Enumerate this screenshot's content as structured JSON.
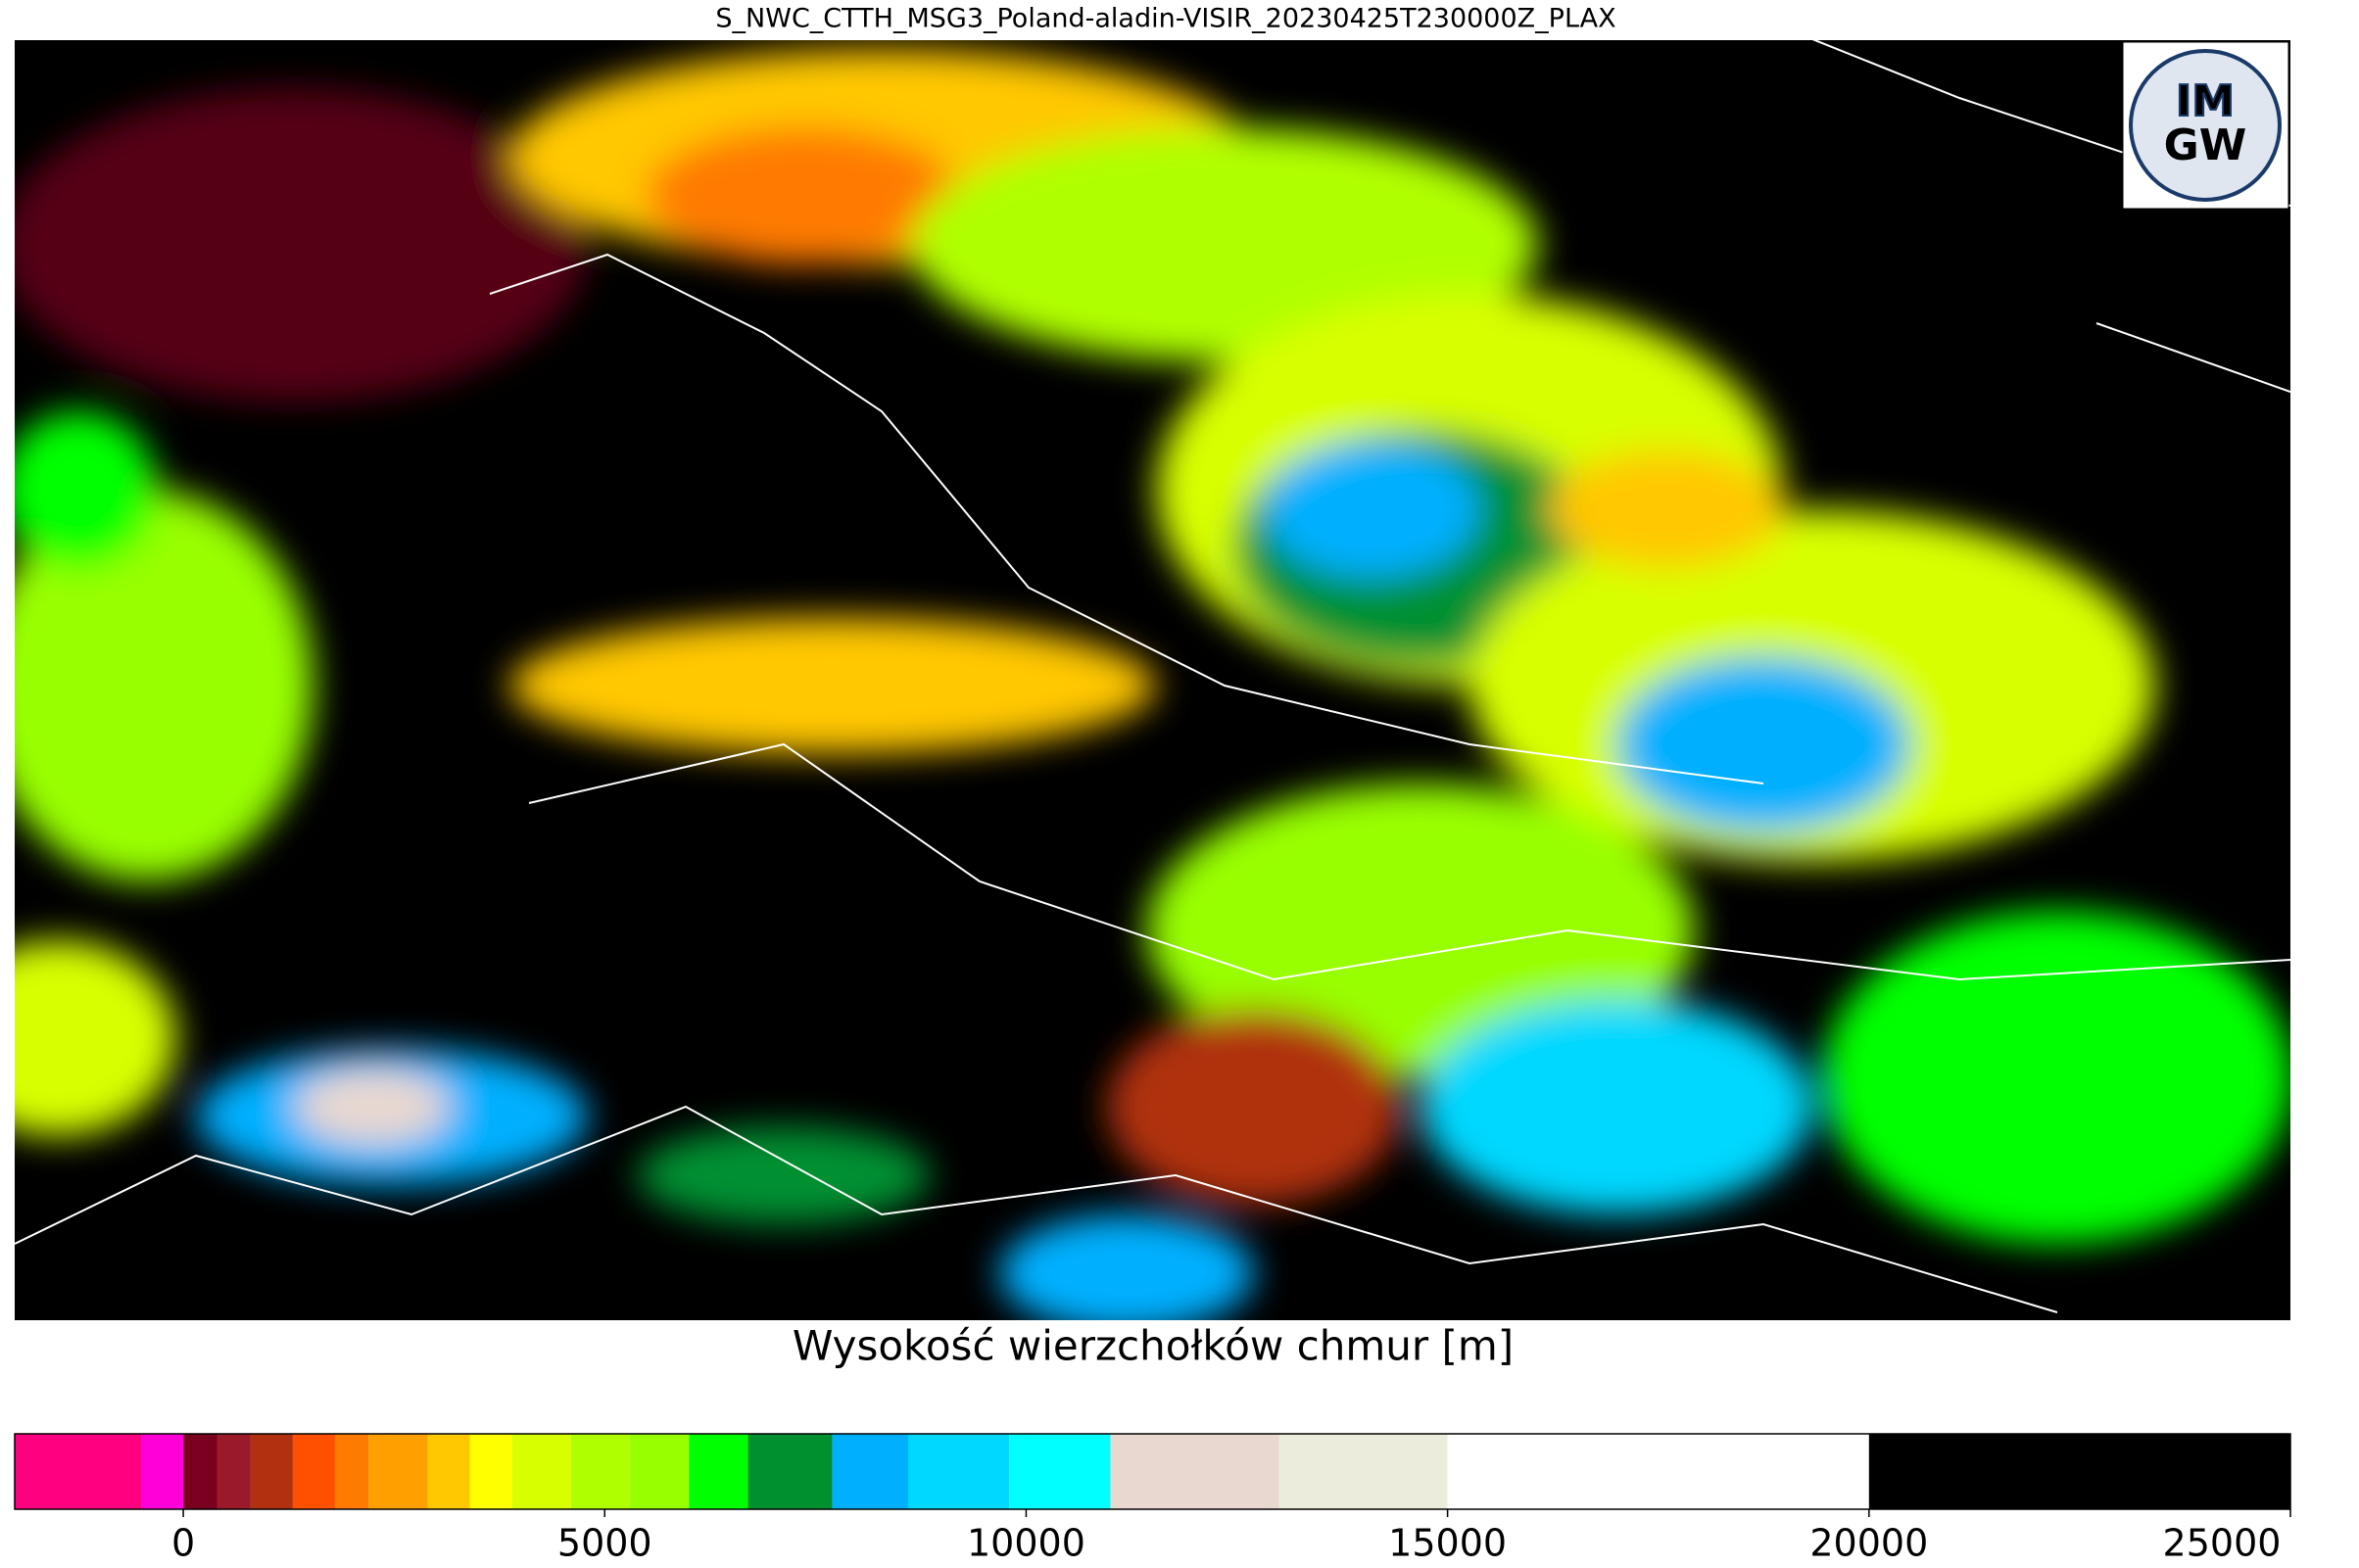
{
  "chart_data": {
    "type": "colorbar",
    "title": "S_NWC_CTTH_MSG3_Poland-aladin-VISIR_20230425T230000Z_PLAX",
    "xlabel": "Wysokość wierzchołków chmur [m]",
    "logo": {
      "top": "IM",
      "bottom": "GW"
    },
    "bins": [
      -2000,
      -500,
      0,
      400,
      800,
      1300,
      1800,
      2200,
      2900,
      3400,
      3900,
      4600,
      5300,
      6000,
      6700,
      7700,
      8600,
      9800,
      11000,
      13000,
      15000,
      20000,
      25000
    ],
    "colors": [
      "#ff0080",
      "#ff00d8",
      "#7a0020",
      "#9a1a2a",
      "#b03010",
      "#ff5000",
      "#ff7a00",
      "#ffa000",
      "#ffc800",
      "#ffff00",
      "#d8ff00",
      "#b0ff00",
      "#98ff00",
      "#00ff00",
      "#009030",
      "#00b0ff",
      "#00d8ff",
      "#00ffff",
      "#e8d8d0",
      "#ececdc",
      "#ffffff",
      "#000000"
    ],
    "xlim": [
      -2000,
      25000
    ],
    "xticks": [
      0,
      5000,
      10000,
      15000,
      20000,
      25000
    ]
  }
}
